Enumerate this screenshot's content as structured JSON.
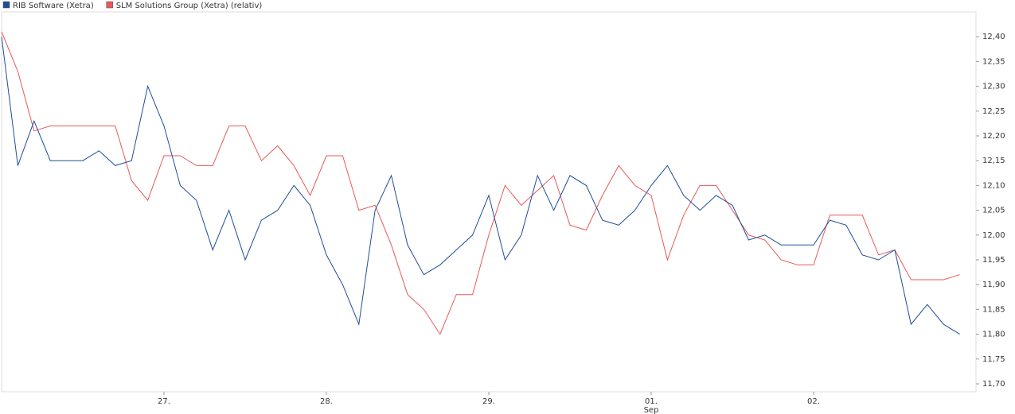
{
  "chart_data": {
    "type": "line",
    "legend_position": "top-left",
    "grid": false,
    "x": [
      -1.0,
      -0.9,
      -0.8,
      -0.7,
      -0.6,
      -0.5,
      -0.4,
      -0.3,
      -0.2,
      -0.1,
      0.0,
      0.1,
      0.2,
      0.3,
      0.4,
      0.5,
      0.6,
      0.7,
      0.8,
      0.9,
      1.0,
      1.1,
      1.2,
      1.3,
      1.4,
      1.5,
      1.6,
      1.7,
      1.8,
      1.9,
      2.0,
      2.1,
      2.2,
      2.3,
      2.4,
      2.5,
      2.6,
      2.7,
      2.8,
      2.9,
      3.0,
      3.1,
      3.2,
      3.3,
      3.4,
      3.5,
      3.6,
      3.7,
      3.8,
      3.9,
      4.0,
      4.1,
      4.2,
      4.3,
      4.4,
      4.5,
      4.6,
      4.7,
      4.8,
      4.9
    ],
    "series": [
      {
        "name": "RIB Software (Xetra)",
        "color": "#1f4e99",
        "values": [
          12.4,
          12.14,
          12.23,
          12.15,
          12.15,
          12.15,
          12.17,
          12.14,
          12.15,
          12.3,
          12.22,
          12.1,
          12.07,
          11.97,
          12.05,
          11.95,
          12.03,
          12.05,
          12.1,
          12.06,
          11.96,
          11.9,
          11.82,
          12.05,
          12.12,
          11.98,
          11.92,
          11.94,
          11.97,
          12.0,
          12.08,
          11.95,
          12.0,
          12.12,
          12.05,
          12.12,
          12.1,
          12.03,
          12.02,
          12.05,
          12.1,
          12.14,
          12.08,
          12.05,
          12.08,
          12.06,
          11.99,
          12.0,
          11.98,
          11.98,
          11.98,
          12.03,
          12.02,
          11.96,
          11.95,
          11.97,
          11.82,
          11.86,
          11.82,
          11.8
        ]
      },
      {
        "name": "SLM Solutions Group (Xetra) (relativ)",
        "color": "#e8595a",
        "values": [
          12.41,
          12.33,
          12.21,
          12.22,
          12.22,
          12.22,
          12.22,
          12.22,
          12.11,
          12.07,
          12.16,
          12.16,
          12.14,
          12.14,
          12.22,
          12.22,
          12.15,
          12.18,
          12.14,
          12.08,
          12.16,
          12.16,
          12.05,
          12.06,
          11.98,
          11.88,
          11.85,
          11.8,
          11.88,
          11.88,
          12.0,
          12.1,
          12.06,
          12.09,
          12.12,
          12.02,
          12.01,
          12.08,
          12.14,
          12.1,
          12.08,
          11.95,
          12.04,
          12.1,
          12.1,
          12.05,
          12.0,
          11.99,
          11.95,
          11.94,
          11.94,
          12.04,
          12.04,
          12.04,
          11.96,
          11.97,
          11.91,
          11.91,
          11.91,
          11.92
        ]
      }
    ],
    "xlim": [
      -1,
      5
    ],
    "xticks": [
      {
        "value": 0,
        "label": "27."
      },
      {
        "value": 1,
        "label": "28."
      },
      {
        "value": 2,
        "label": "29."
      },
      {
        "value": 3,
        "label": "01."
      },
      {
        "value": 4,
        "label": "02."
      }
    ],
    "x_month_label": "Sep",
    "ylim": [
      11.684,
      12.45
    ],
    "yticks": [
      {
        "value": 11.7,
        "label": "11,70"
      },
      {
        "value": 11.75,
        "label": "11,75"
      },
      {
        "value": 11.8,
        "label": "11,80"
      },
      {
        "value": 11.85,
        "label": "11,85"
      },
      {
        "value": 11.9,
        "label": "11,90"
      },
      {
        "value": 11.95,
        "label": "11,95"
      },
      {
        "value": 12.0,
        "label": "12,00"
      },
      {
        "value": 12.05,
        "label": "12,05"
      },
      {
        "value": 12.1,
        "label": "12,10"
      },
      {
        "value": 12.15,
        "label": "12,15"
      },
      {
        "value": 12.2,
        "label": "12,20"
      },
      {
        "value": 12.25,
        "label": "12,25"
      },
      {
        "value": 12.3,
        "label": "12,30"
      },
      {
        "value": 12.35,
        "label": "12,35"
      },
      {
        "value": 12.4,
        "label": "12,40"
      }
    ]
  }
}
